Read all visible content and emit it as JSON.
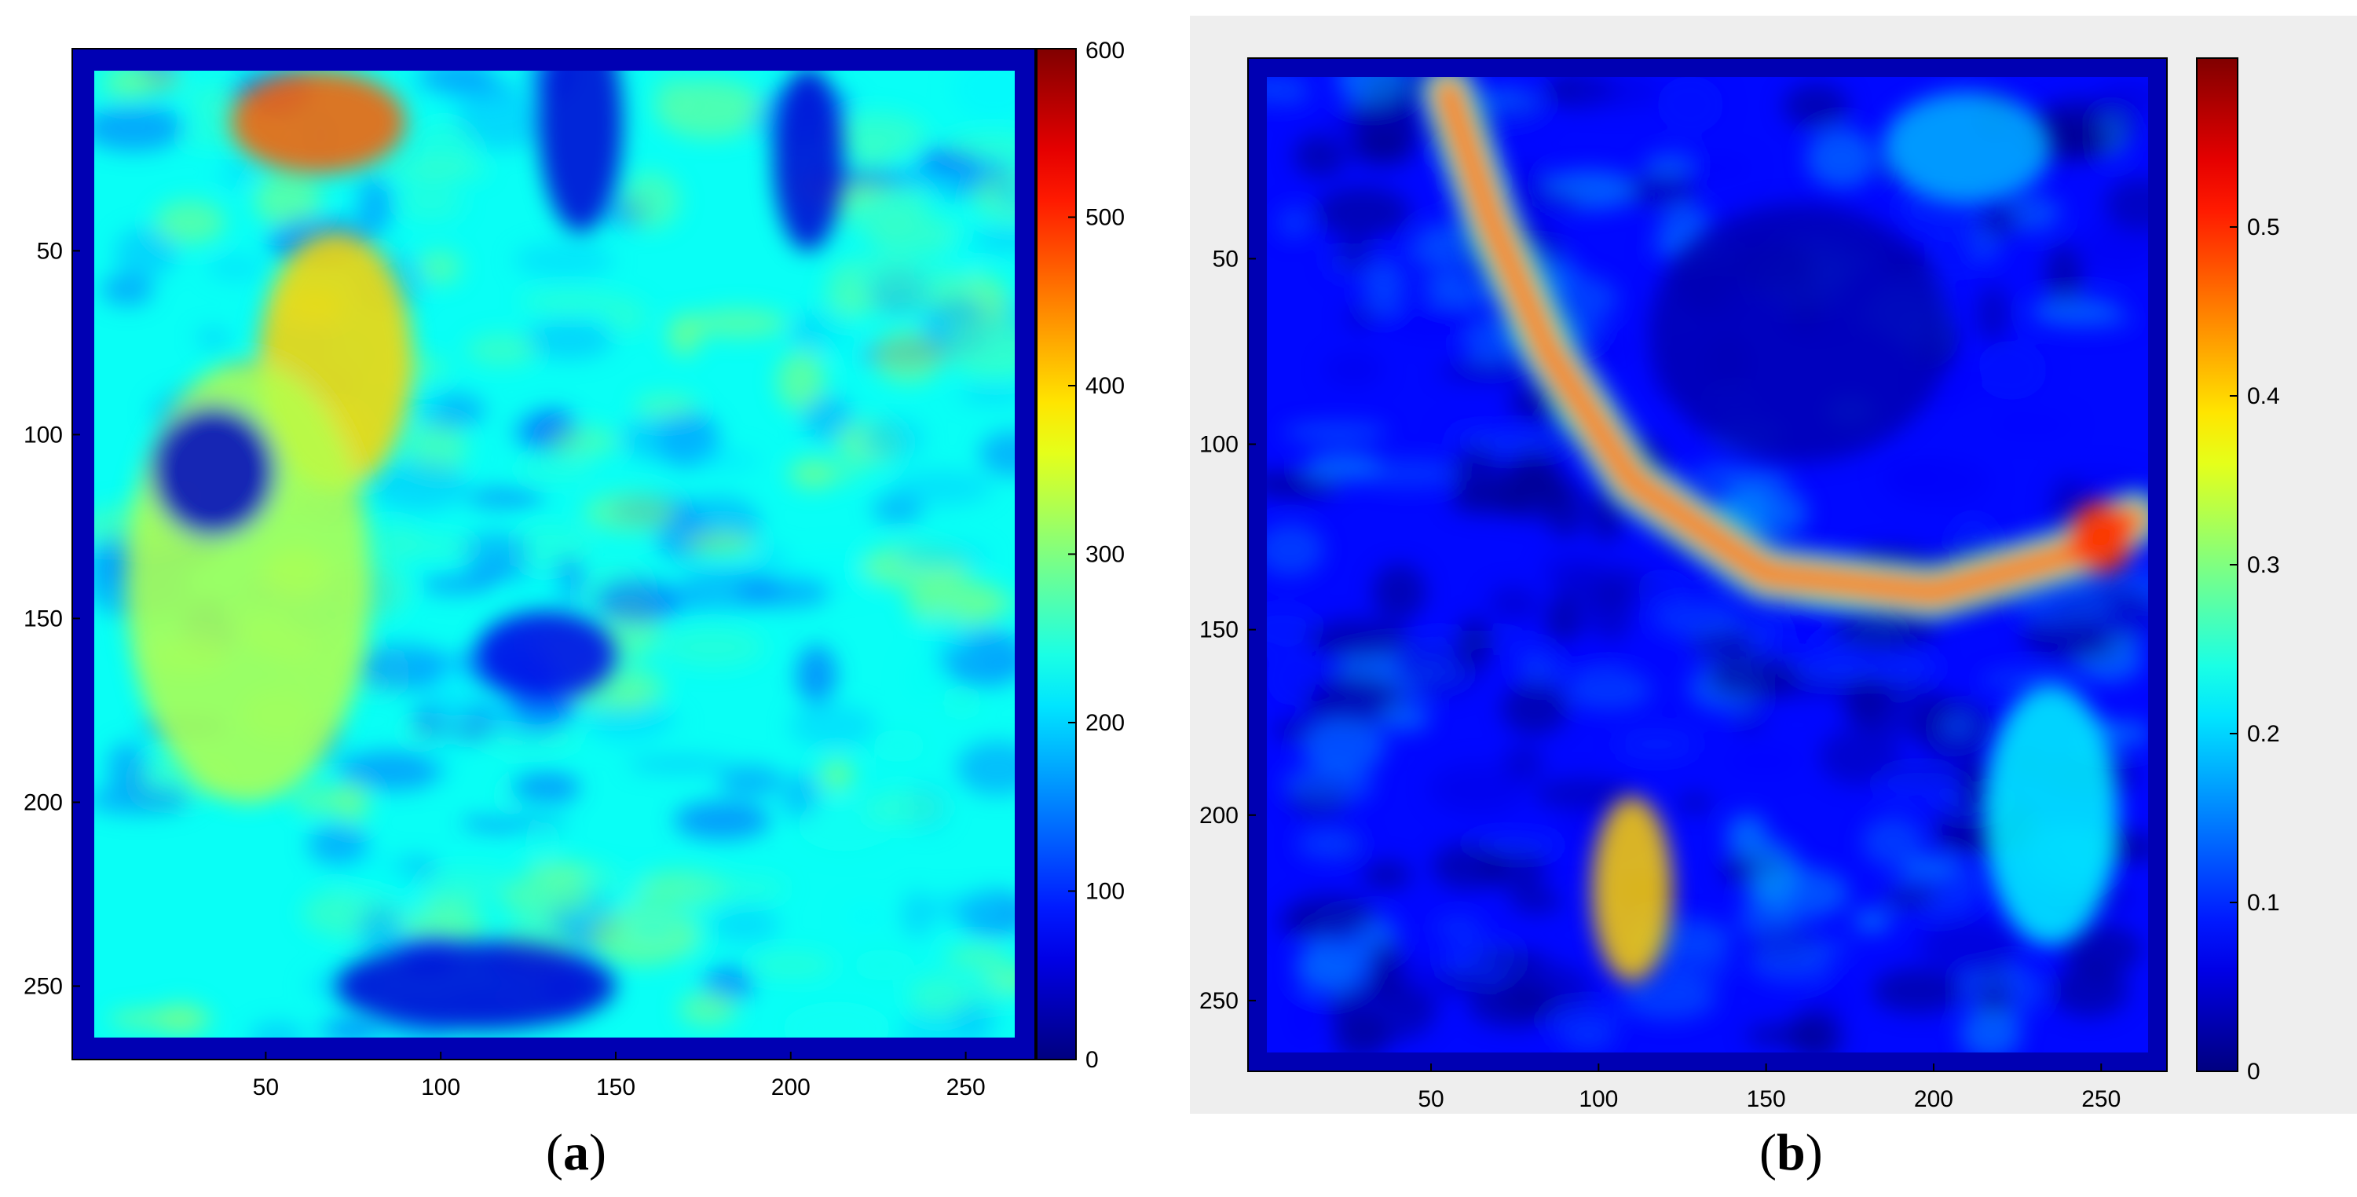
{
  "chart_data": [
    {
      "type": "heatmap",
      "panel_label": "a",
      "caption_open": "(",
      "caption_close": ")",
      "title": "",
      "xlabel": "",
      "ylabel": "",
      "x_ticks": [
        "50",
        "100",
        "150",
        "200",
        "250"
      ],
      "y_ticks": [
        "50",
        "100",
        "150",
        "200",
        "250"
      ],
      "xlim": [
        1,
        264
      ],
      "ylim": [
        1,
        264
      ],
      "y_reversed": true,
      "colorbar": {
        "min": 0,
        "max": 600,
        "ticks": [
          "0",
          "100",
          "200",
          "300",
          "400",
          "500",
          "600"
        ],
        "colormap": "jet"
      },
      "summary": {
        "background_value": 230,
        "features": [
          {
            "kind": "high",
            "x": 65,
            "y": 15,
            "rx": 25,
            "ry": 14,
            "value": 470
          },
          {
            "kind": "high",
            "x": 70,
            "y": 80,
            "rx": 22,
            "ry": 35,
            "value": 400
          },
          {
            "kind": "high",
            "x": 45,
            "y": 140,
            "rx": 35,
            "ry": 60,
            "value": 330
          },
          {
            "kind": "low",
            "x": 35,
            "y": 110,
            "rx": 18,
            "ry": 18,
            "value": 40
          },
          {
            "kind": "low",
            "x": 140,
            "y": 15,
            "rx": 12,
            "ry": 30,
            "value": 50
          },
          {
            "kind": "low",
            "x": 205,
            "y": 25,
            "rx": 10,
            "ry": 25,
            "value": 50
          },
          {
            "kind": "low",
            "x": 130,
            "y": 160,
            "rx": 20,
            "ry": 12,
            "value": 60
          },
          {
            "kind": "low",
            "x": 110,
            "y": 250,
            "rx": 40,
            "ry": 12,
            "value": 50
          }
        ]
      }
    },
    {
      "type": "heatmap",
      "panel_label": "b",
      "caption_open": "(",
      "caption_close": ")",
      "title": "",
      "xlabel": "",
      "ylabel": "",
      "x_ticks": [
        "50",
        "100",
        "150",
        "200",
        "250"
      ],
      "y_ticks": [
        "50",
        "100",
        "150",
        "200",
        "250"
      ],
      "xlim": [
        1,
        264
      ],
      "ylim": [
        1,
        264
      ],
      "y_reversed": true,
      "colorbar": {
        "min": 0,
        "max": 0.6,
        "ticks": [
          "0",
          "0.1",
          "0.2",
          "0.3",
          "0.4",
          "0.5"
        ],
        "colormap": "jet"
      },
      "summary": {
        "background_value": 0.08,
        "features": [
          {
            "kind": "high-arc",
            "path": [
              [
                55,
                5
              ],
              [
                68,
                40
              ],
              [
                85,
                75
              ],
              [
                110,
                110
              ],
              [
                150,
                135
              ],
              [
                200,
                140
              ],
              [
                240,
                130
              ],
              [
                260,
                120
              ]
            ],
            "value": 0.45
          },
          {
            "kind": "high",
            "x": 250,
            "y": 125,
            "rx": 10,
            "ry": 10,
            "value": 0.5
          },
          {
            "kind": "high",
            "x": 110,
            "y": 220,
            "rx": 12,
            "ry": 25,
            "value": 0.4
          },
          {
            "kind": "medium",
            "x": 235,
            "y": 200,
            "rx": 20,
            "ry": 35,
            "value": 0.22
          },
          {
            "kind": "medium",
            "x": 210,
            "y": 20,
            "rx": 25,
            "ry": 15,
            "value": 0.18
          },
          {
            "kind": "low",
            "x": 160,
            "y": 70,
            "rx": 45,
            "ry": 35,
            "value": 0.03
          }
        ]
      }
    }
  ]
}
